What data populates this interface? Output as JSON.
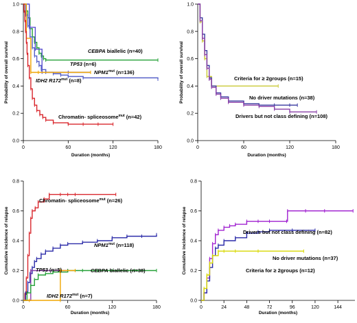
{
  "chart_data": [
    {
      "type": "line",
      "ylabel": "Probability of overall survival",
      "xlabel": "Duration (months)",
      "xlim": [
        0,
        180
      ],
      "ylim": [
        0,
        1.0
      ],
      "xticks": [
        "0",
        "60",
        "120",
        "180"
      ],
      "xtick_values": [
        0,
        60,
        120,
        180
      ],
      "yticks": [
        "0.0",
        "0.2",
        "0.4",
        "0.6",
        "0.8",
        "1.0"
      ],
      "ytick_values": [
        0,
        0.2,
        0.4,
        0.6,
        0.8,
        1.0
      ],
      "grid": false,
      "series": [
        {
          "name": "CEBPA biallelic (n=40)",
          "color": "#22a035",
          "x": [
            0,
            3,
            6,
            9,
            12,
            15,
            18,
            21,
            24,
            27,
            30,
            180
          ],
          "y": [
            1.0,
            0.95,
            0.9,
            0.82,
            0.76,
            0.72,
            0.68,
            0.64,
            0.62,
            0.6,
            0.59,
            0.59
          ]
        },
        {
          "name": "TP53 (n=6)",
          "color": "#5a4fcf",
          "x": [
            0,
            8,
            16,
            25,
            60,
            90
          ],
          "y": [
            1.0,
            0.83,
            0.67,
            0.5,
            0.5,
            0.5
          ]
        },
        {
          "name": "NPM1mut (n=136)",
          "color": "#5560c8",
          "x": [
            0,
            3,
            6,
            9,
            12,
            15,
            18,
            21,
            24,
            30,
            40,
            50,
            60,
            80,
            180
          ],
          "y": [
            1.0,
            0.92,
            0.84,
            0.76,
            0.68,
            0.62,
            0.58,
            0.55,
            0.52,
            0.5,
            0.49,
            0.48,
            0.47,
            0.46,
            0.45
          ]
        },
        {
          "name": "IDH2 R172mut (n=8)",
          "color": "#f0a500",
          "x": [
            0,
            4,
            10,
            20,
            90
          ],
          "y": [
            1.0,
            0.75,
            0.5,
            0.5,
            0.5
          ]
        },
        {
          "name": "Chromatin- spliceosomemut (n=42)",
          "color": "#d9262c",
          "x": [
            0,
            1,
            2,
            3,
            4,
            5,
            6,
            8,
            10,
            12,
            15,
            18,
            22,
            26,
            30,
            40,
            60,
            80,
            100,
            120
          ],
          "y": [
            1.0,
            0.95,
            0.88,
            0.8,
            0.72,
            0.64,
            0.55,
            0.46,
            0.38,
            0.31,
            0.26,
            0.22,
            0.19,
            0.17,
            0.15,
            0.13,
            0.12,
            0.12,
            0.12,
            0.12
          ]
        }
      ],
      "annotations": [
        {
          "italic": "CEBPA",
          "rest": " biallelic (n=40)"
        },
        {
          "italic": "TP53",
          "rest": " (n=6)"
        },
        {
          "italic": "NPM1",
          "sup": "mut",
          "rest": " (n=136)"
        },
        {
          "italic": "IDH2 R172",
          "sup": "mut",
          "rest": " (n=8)"
        },
        {
          "text": "Chromatin- spliceosome",
          "sup": "mut",
          "rest": " (n=42)"
        }
      ]
    },
    {
      "type": "line",
      "ylabel": "Probability of overall survival",
      "xlabel": "Duration (months)",
      "xlim": [
        0,
        180
      ],
      "ylim": [
        0,
        1.0
      ],
      "xticks": [
        "0",
        "60",
        "120",
        "180"
      ],
      "xtick_values": [
        0,
        60,
        120,
        180
      ],
      "yticks": [
        "0.0",
        "0.2",
        "0.4",
        "0.6",
        "0.8",
        "1.0"
      ],
      "ytick_values": [
        0,
        0.2,
        0.4,
        0.6,
        0.8,
        1.0
      ],
      "grid": false,
      "series": [
        {
          "name": "Criteria for ≥ 2groups (n=15)",
          "color": "#c8c832",
          "x": [
            0,
            3,
            6,
            9,
            12,
            18,
            105
          ],
          "y": [
            1.0,
            0.87,
            0.73,
            0.6,
            0.47,
            0.4,
            0.4
          ]
        },
        {
          "name": "No driver mutations (n=38)",
          "color": "#3a3aa0",
          "x": [
            0,
            3,
            6,
            9,
            12,
            15,
            18,
            24,
            30,
            40,
            60,
            80,
            100,
            120,
            130
          ],
          "y": [
            1.0,
            0.9,
            0.78,
            0.66,
            0.55,
            0.46,
            0.4,
            0.35,
            0.32,
            0.29,
            0.27,
            0.26,
            0.26,
            0.26,
            0.26
          ]
        },
        {
          "name": "Drivers but not class defining (n=108)",
          "color": "#8a3fa8",
          "x": [
            0,
            3,
            6,
            9,
            12,
            15,
            18,
            24,
            30,
            40,
            60,
            80,
            100,
            120,
            155
          ],
          "y": [
            1.0,
            0.88,
            0.75,
            0.63,
            0.53,
            0.45,
            0.39,
            0.34,
            0.31,
            0.28,
            0.26,
            0.25,
            0.23,
            0.21,
            0.21
          ]
        }
      ],
      "annotations": [
        {
          "text": "Criteria for ≥ 2groups (n=15)"
        },
        {
          "text": "No driver mutations (n=38)"
        },
        {
          "text": "Drivers but not class defining (n=108)"
        }
      ]
    },
    {
      "type": "line",
      "ylabel": "Cumulative incidence of relapse",
      "xlabel": "Duration (months)",
      "xlim": [
        0,
        180
      ],
      "ylim": [
        0,
        0.8
      ],
      "xticks": [
        "0",
        "60",
        "120",
        "180"
      ],
      "xtick_values": [
        0,
        60,
        120,
        180
      ],
      "yticks": [
        "0.0",
        "0.2",
        "0.4",
        "0.6",
        "0.8"
      ],
      "ytick_values": [
        0,
        0.2,
        0.4,
        0.6,
        0.8
      ],
      "grid": false,
      "series": [
        {
          "name": "Chromatin- spliceosomemut (n=26)",
          "color": "#d9262c",
          "x": [
            0,
            2,
            4,
            6,
            8,
            10,
            12,
            16,
            20,
            28,
            35,
            50,
            60,
            70,
            125
          ],
          "y": [
            0,
            0.04,
            0.15,
            0.3,
            0.45,
            0.55,
            0.6,
            0.62,
            0.66,
            0.68,
            0.71,
            0.71,
            0.71,
            0.71,
            0.71
          ]
        },
        {
          "name": "NPM1mut (n=118)",
          "color": "#2a2aa8",
          "x": [
            0,
            3,
            6,
            9,
            12,
            15,
            18,
            24,
            30,
            40,
            50,
            60,
            80,
            100,
            120,
            140,
            160,
            180
          ],
          "y": [
            0,
            0.05,
            0.12,
            0.18,
            0.22,
            0.26,
            0.28,
            0.31,
            0.33,
            0.35,
            0.37,
            0.38,
            0.39,
            0.4,
            0.42,
            0.43,
            0.43,
            0.44
          ]
        },
        {
          "name": "TP53 (n=5)",
          "color": "#8a3fa8",
          "x": [
            0,
            10,
            60
          ],
          "y": [
            0,
            0.2,
            0.2
          ]
        },
        {
          "name": "CEBPA biallelic (n=38)",
          "color": "#22a035",
          "x": [
            0,
            5,
            10,
            15,
            20,
            30,
            40,
            60,
            80,
            100,
            120,
            150,
            180
          ],
          "y": [
            0,
            0.05,
            0.1,
            0.14,
            0.17,
            0.18,
            0.19,
            0.2,
            0.2,
            0.2,
            0.2,
            0.2,
            0.2
          ]
        },
        {
          "name": "IDH2 R172mut (n=7)",
          "color": "#f0a500",
          "x": [
            0,
            8,
            50,
            50,
            70
          ],
          "y": [
            0,
            0.0,
            0.0,
            0.2,
            0.2
          ]
        }
      ],
      "annotations": [
        {
          "text": "Chromatin- spliceosome",
          "sup": "mut",
          "rest": " (n=26)"
        },
        {
          "italic": "NPM1",
          "sup": "mut",
          "rest": " (n=118)"
        },
        {
          "italic": "TP53",
          "rest": " (n=5)"
        },
        {
          "italic": "CEBPA",
          "rest": " biallelic (n=38)"
        },
        {
          "italic": "IDH2 R172",
          "sup": "mut",
          "rest": " (n=7)"
        }
      ]
    },
    {
      "type": "line",
      "ylabel": "Cumulative incidence of relapse",
      "xlabel": "Duration (months)",
      "xlim": [
        0,
        162
      ],
      "ylim": [
        0,
        0.8
      ],
      "xticks": [
        "0",
        "24",
        "48",
        "72",
        "96",
        "120",
        "144"
      ],
      "xtick_values": [
        0,
        24,
        48,
        72,
        96,
        120,
        144
      ],
      "yticks": [
        "0.0",
        "0.2",
        "0.4",
        "0.6",
        "0.8"
      ],
      "ytick_values": [
        0,
        0.2,
        0.4,
        0.6,
        0.8
      ],
      "grid": false,
      "series": [
        {
          "name": "Drivers but not class defining (n=82)",
          "color": "#a020d0",
          "x": [
            0,
            3,
            6,
            9,
            12,
            15,
            18,
            24,
            30,
            36,
            48,
            60,
            72,
            90,
            91,
            110,
            130,
            160
          ],
          "y": [
            0,
            0.05,
            0.15,
            0.28,
            0.38,
            0.44,
            0.47,
            0.49,
            0.5,
            0.51,
            0.53,
            0.53,
            0.53,
            0.53,
            0.6,
            0.6,
            0.6,
            0.6
          ]
        },
        {
          "name": "No driver mutations (n=37)",
          "color": "#2a2aa8",
          "x": [
            0,
            3,
            6,
            9,
            12,
            15,
            18,
            24,
            36,
            48,
            60,
            72,
            96,
            120
          ],
          "y": [
            0,
            0.05,
            0.13,
            0.22,
            0.3,
            0.35,
            0.37,
            0.4,
            0.42,
            0.45,
            0.46,
            0.47,
            0.47,
            0.47
          ]
        },
        {
          "name": "Criteria for ≥ 2groups (n=12)",
          "color": "#d7d700",
          "x": [
            0,
            3,
            6,
            9,
            12,
            18,
            24,
            36,
            60,
            108
          ],
          "y": [
            0,
            0.08,
            0.17,
            0.25,
            0.3,
            0.33,
            0.33,
            0.33,
            0.33,
            0.33
          ]
        }
      ],
      "annotations": [
        {
          "text": "Drivers but not class defining (n=82)"
        },
        {
          "text": "No driver mutations (n=37)"
        },
        {
          "text": "Criteria for ≥ 2groups (n=12)"
        }
      ]
    }
  ]
}
